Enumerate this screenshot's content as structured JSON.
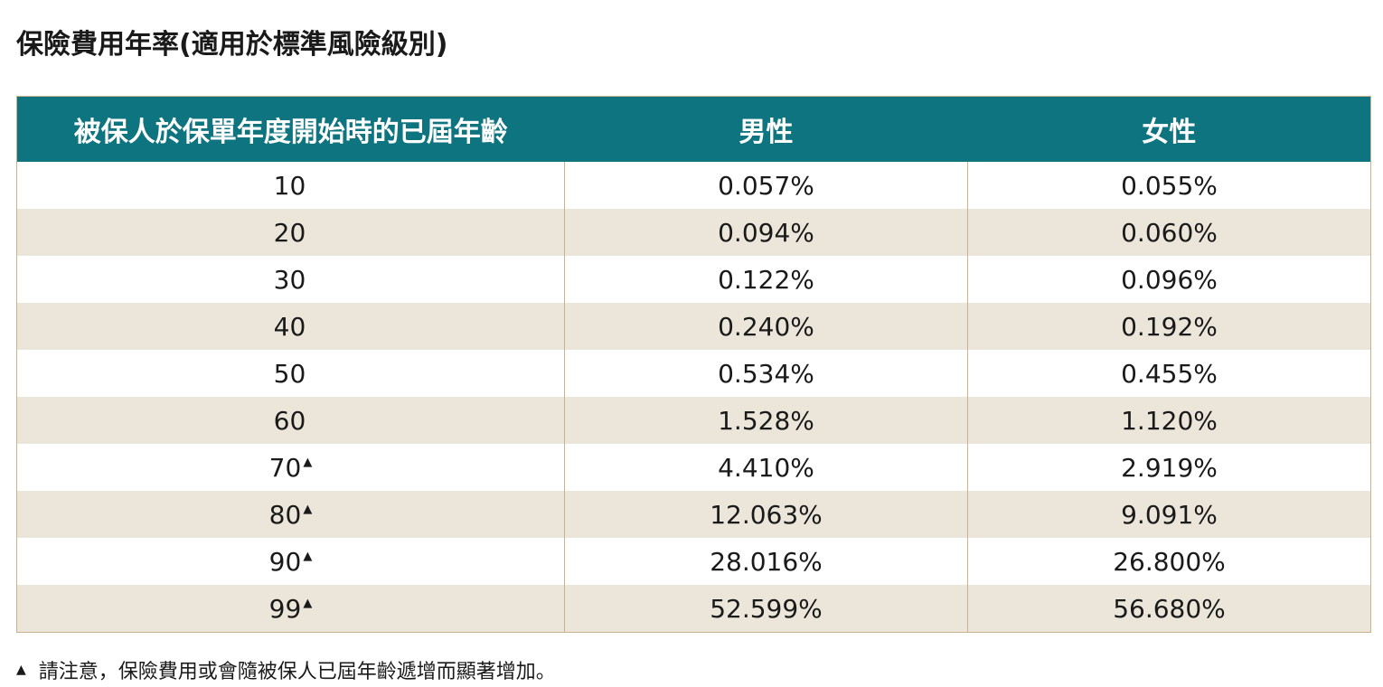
{
  "title": "保險費用年率(適用於標準風險級別)",
  "table": {
    "headers": [
      "被保人於保單年度開始時的已屆年齡",
      "男性",
      "女性"
    ],
    "rows": [
      {
        "age": "10",
        "marker": "",
        "male": "0.057%",
        "female": "0.055%"
      },
      {
        "age": "20",
        "marker": "",
        "male": "0.094%",
        "female": "0.060%"
      },
      {
        "age": "30",
        "marker": "",
        "male": "0.122%",
        "female": "0.096%"
      },
      {
        "age": "40",
        "marker": "",
        "male": "0.240%",
        "female": "0.192%"
      },
      {
        "age": "50",
        "marker": "",
        "male": "0.534%",
        "female": "0.455%"
      },
      {
        "age": "60",
        "marker": "",
        "male": "1.528%",
        "female": "1.120%"
      },
      {
        "age": "70",
        "marker": "▲",
        "male": "4.410%",
        "female": "2.919%"
      },
      {
        "age": "80",
        "marker": "▲",
        "male": "12.063%",
        "female": "9.091%"
      },
      {
        "age": "90",
        "marker": "▲",
        "male": "28.016%",
        "female": "26.800%"
      },
      {
        "age": "99",
        "marker": "▲",
        "male": "52.599%",
        "female": "56.680%"
      }
    ]
  },
  "note": {
    "marker": "▲",
    "text": "請注意，保險費用或會隨被保人已屆年齡遞增而顯著增加。"
  },
  "colors": {
    "header_bg": "#0e7480",
    "stripe_bg": "#ebe6d9",
    "border": "#c7b48f"
  }
}
